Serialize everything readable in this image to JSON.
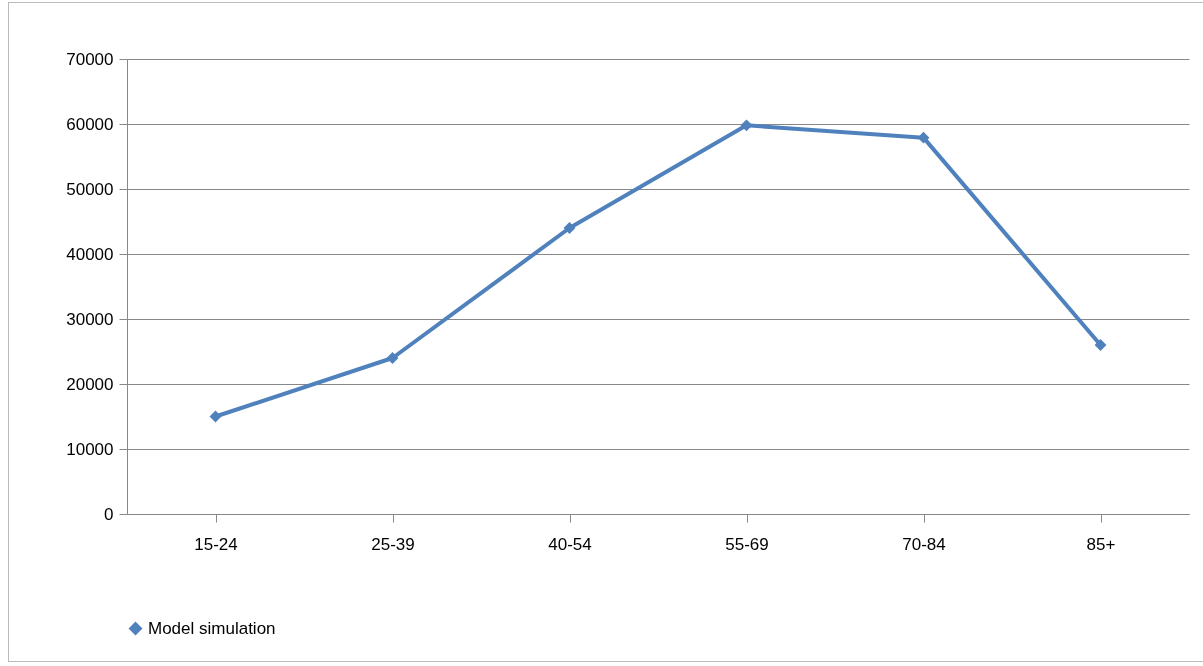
{
  "chart_data": {
    "type": "line",
    "categories": [
      "15-24",
      "25-39",
      "40-54",
      "55-69",
      "70-84",
      "85+"
    ],
    "series": [
      {
        "name": "Model simulation",
        "color": "#4f81bd",
        "values": [
          15000,
          24000,
          44000,
          59800,
          57900,
          26000
        ]
      }
    ],
    "ylim": [
      0,
      70000
    ],
    "yticks": [
      0,
      10000,
      20000,
      30000,
      40000,
      50000,
      60000,
      70000
    ],
    "grid": "y",
    "legend": "bottom",
    "marker": "diamond",
    "line_style": "solid"
  }
}
